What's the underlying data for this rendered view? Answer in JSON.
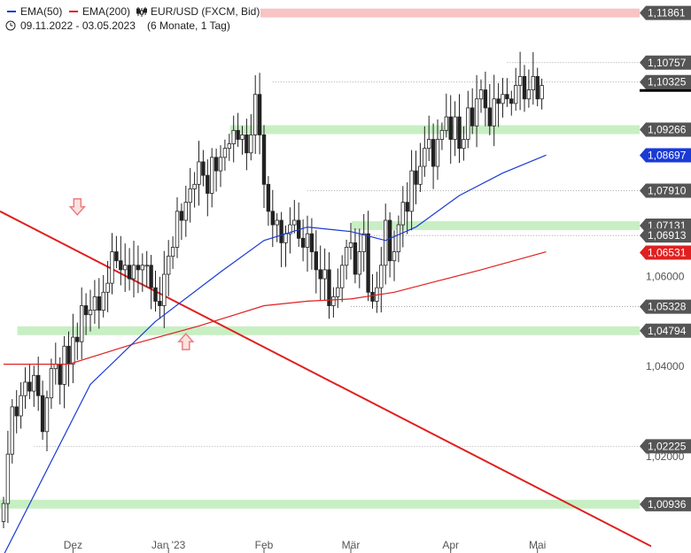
{
  "chart_data": {
    "type": "candlestick",
    "title": "EUR/USD (FXCM, Bid)",
    "date_range": "09.11.2022 - 03.05.2023",
    "timeframe": "(6 Monate, 1 Tag)",
    "legend": [
      {
        "name": "EMA(50)",
        "color": "#1a3ad6"
      },
      {
        "name": "EMA(200)",
        "color": "#e02020"
      }
    ],
    "x_ticks": [
      {
        "label": "Dez",
        "index": 16
      },
      {
        "label": "Jan '23",
        "index": 38
      },
      {
        "label": "Feb",
        "index": 60
      },
      {
        "label": "Mär",
        "index": 80
      },
      {
        "label": "Apr",
        "index": 103
      },
      {
        "label": "Mai",
        "index": 123
      }
    ],
    "y_ticks": [
      "1,06000",
      "1,04000",
      "1,02000"
    ],
    "y_tick_values": [
      1.06,
      1.04,
      1.02
    ],
    "ylim": [
      0.9985,
      1.1215
    ],
    "levels": [
      {
        "label": "1,11861",
        "value": 1.11861,
        "zone": "red"
      },
      {
        "label": "1,10757",
        "value": 1.10757,
        "zone": "none"
      },
      {
        "label": "1,10325",
        "value": 1.10325,
        "zone": "none"
      },
      {
        "label": "1,09266",
        "value": 1.09266,
        "zone": "green"
      },
      {
        "label": "1,07910",
        "value": 1.0791,
        "zone": "none"
      },
      {
        "label": "1,07131",
        "value": 1.07131,
        "zone": "green"
      },
      {
        "label": "1,06913",
        "value": 1.06913,
        "zone": "none"
      },
      {
        "label": "1,05328",
        "value": 1.05328,
        "zone": "none"
      },
      {
        "label": "1,04794",
        "value": 1.04794,
        "zone": "green"
      },
      {
        "label": "1,02225",
        "value": 1.02225,
        "zone": "none"
      },
      {
        "label": "1,00936",
        "value": 1.00936,
        "zone": "green"
      }
    ],
    "current_price": {
      "label": "1,10325",
      "value": 1.10325
    },
    "ema50_badge": {
      "label": "1,08697",
      "value": 1.08697,
      "color": "#1a3ad6"
    },
    "ema200_badge": {
      "label": "1,06531",
      "value": 1.06531,
      "color": "#e02020"
    },
    "closes": [
      1.0095,
      1.0205,
      1.031,
      1.029,
      1.0335,
      1.0365,
      1.0345,
      1.038,
      1.0335,
      1.0255,
      1.033,
      1.0395,
      1.0405,
      1.036,
      1.0445,
      1.0405,
      1.0465,
      1.0455,
      1.0535,
      1.0515,
      1.0525,
      1.0555,
      1.0525,
      1.0565,
      1.0585,
      1.0655,
      1.0635,
      1.0615,
      1.0625,
      1.0595,
      1.0625,
      1.0615,
      1.0625,
      1.0625,
      1.0575,
      1.0545,
      1.0535,
      1.0605,
      1.0645,
      1.0665,
      1.0745,
      1.0725,
      1.0765,
      1.0795,
      1.0805,
      1.0855,
      1.0825,
      1.0785,
      1.0865,
      1.0835,
      1.0865,
      1.0885,
      1.0895,
      1.0925,
      1.0905,
      1.0915,
      1.0875,
      1.0915,
      1.1005,
      1.0915,
      1.0805,
      1.0745,
      1.0715,
      1.0725,
      1.0675,
      1.0695,
      1.0715,
      1.0725,
      1.0685,
      1.0665,
      1.0695,
      1.0655,
      1.0615,
      1.0595,
      1.0615,
      1.0535,
      1.0555,
      1.0575,
      1.0625,
      1.0665,
      1.0675,
      1.0605,
      1.0655,
      1.0695,
      1.0565,
      1.0545,
      1.0575,
      1.0625,
      1.0725,
      1.0635,
      1.0655,
      1.0715,
      1.0765,
      1.0745,
      1.0835,
      1.0805,
      1.0845,
      1.0885,
      1.0905,
      1.0845,
      1.0905,
      1.0925,
      1.0955,
      1.0905,
      1.0955,
      1.0885,
      1.0905,
      1.0975,
      1.0935,
      1.0995,
      1.1015,
      1.0975,
      1.0935,
      1.0995,
      1.0985,
      1.1005,
      1.0995,
      1.0985,
      1.1025,
      1.1045,
      1.0995,
      1.1015,
      1.1045,
      1.0995,
      1.1025
    ],
    "ema50": [
      [
        0,
        0.998
      ],
      [
        20,
        1.036
      ],
      [
        35,
        1.05
      ],
      [
        50,
        1.061
      ],
      [
        60,
        1.068
      ],
      [
        70,
        1.071
      ],
      [
        80,
        1.07
      ],
      [
        88,
        1.068
      ],
      [
        95,
        1.071
      ],
      [
        105,
        1.078
      ],
      [
        115,
        1.083
      ],
      [
        125,
        1.087
      ]
    ],
    "ema200": [
      [
        0,
        1.0405
      ],
      [
        15,
        1.0405
      ],
      [
        30,
        1.045
      ],
      [
        45,
        1.049
      ],
      [
        60,
        1.0535
      ],
      [
        70,
        1.0545
      ],
      [
        80,
        1.055
      ],
      [
        90,
        1.0565
      ],
      [
        100,
        1.059
      ],
      [
        110,
        1.0615
      ],
      [
        125,
        1.0655
      ]
    ],
    "trendline": [
      [
        0,
        1.0745
      ],
      [
        735,
        1.0
      ]
    ],
    "arrows": [
      {
        "dir": "down",
        "index": 17,
        "value": 1.0755,
        "color": "#e88080"
      },
      {
        "dir": "up",
        "index": 42,
        "value": 1.0455,
        "color": "#e88080"
      }
    ]
  }
}
